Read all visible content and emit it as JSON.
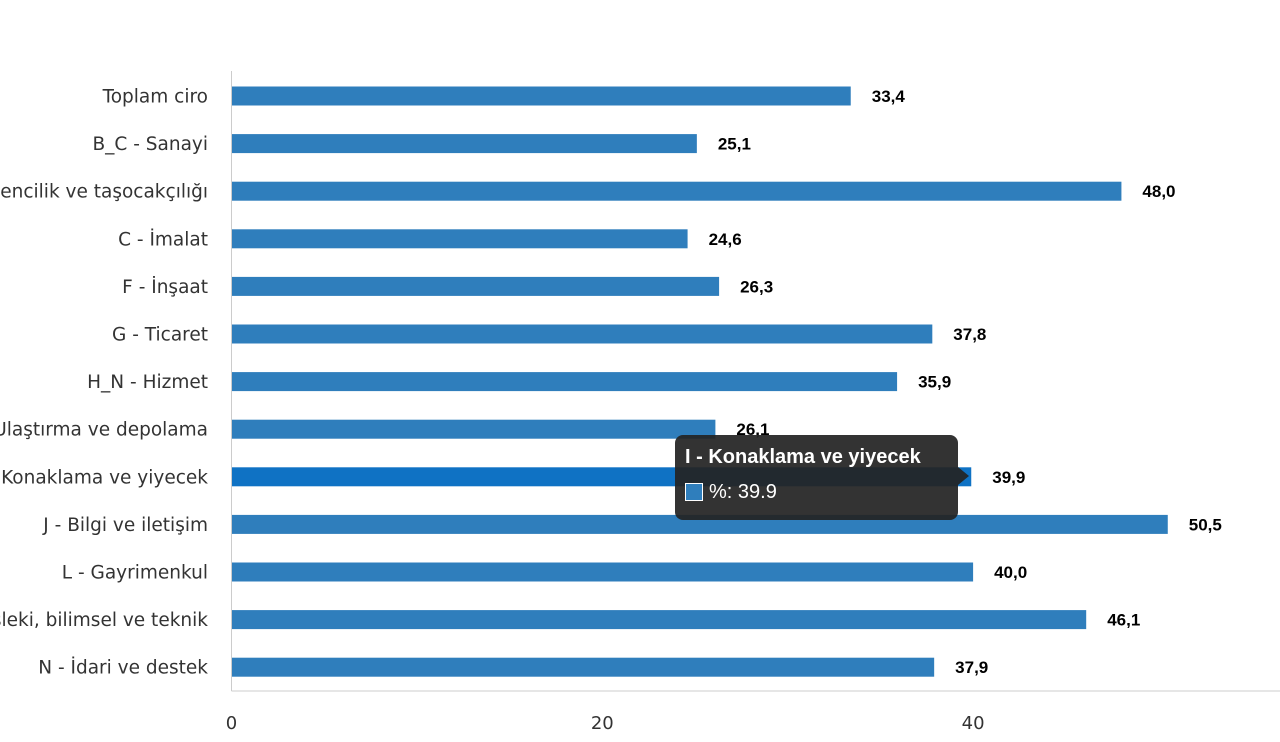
{
  "chart_data": {
    "type": "bar",
    "orientation": "horizontal",
    "categories": [
      "Toplam ciro",
      "B_C - Sanayi",
      "B - Madencilik ve taşocakçılığı",
      "C - İmalat",
      "F - İnşaat",
      "G - Ticaret",
      "H_N - Hizmet",
      "H - Ulaştırma ve depolama",
      "I - Konaklama ve yiyecek",
      "J - Bilgi ve iletişim",
      "L - Gayrimenkul",
      "M - Mesleki, bilimsel ve teknik",
      "N - İdari ve destek"
    ],
    "series": [
      {
        "name": "%",
        "values": [
          33.4,
          25.1,
          48.0,
          24.6,
          26.3,
          37.8,
          35.9,
          26.1,
          39.9,
          50.5,
          40.0,
          46.1,
          37.9
        ],
        "value_labels": [
          "33,4",
          "25,1",
          "48,0",
          "24,6",
          "26,3",
          "37,8",
          "35,9",
          "26,1",
          "39,9",
          "50,5",
          "40,0",
          "46,1",
          "37,9"
        ]
      }
    ],
    "xticks": [
      0,
      20,
      40
    ],
    "xlim": [
      0,
      56
    ],
    "bar_color": "#2f7ebc",
    "highlight_color": "#0f72c4",
    "highlighted_index": 8,
    "grid": false
  },
  "tooltip": {
    "title": "I - Konaklama ve yiyecek",
    "series_label": "%: 39.9"
  }
}
